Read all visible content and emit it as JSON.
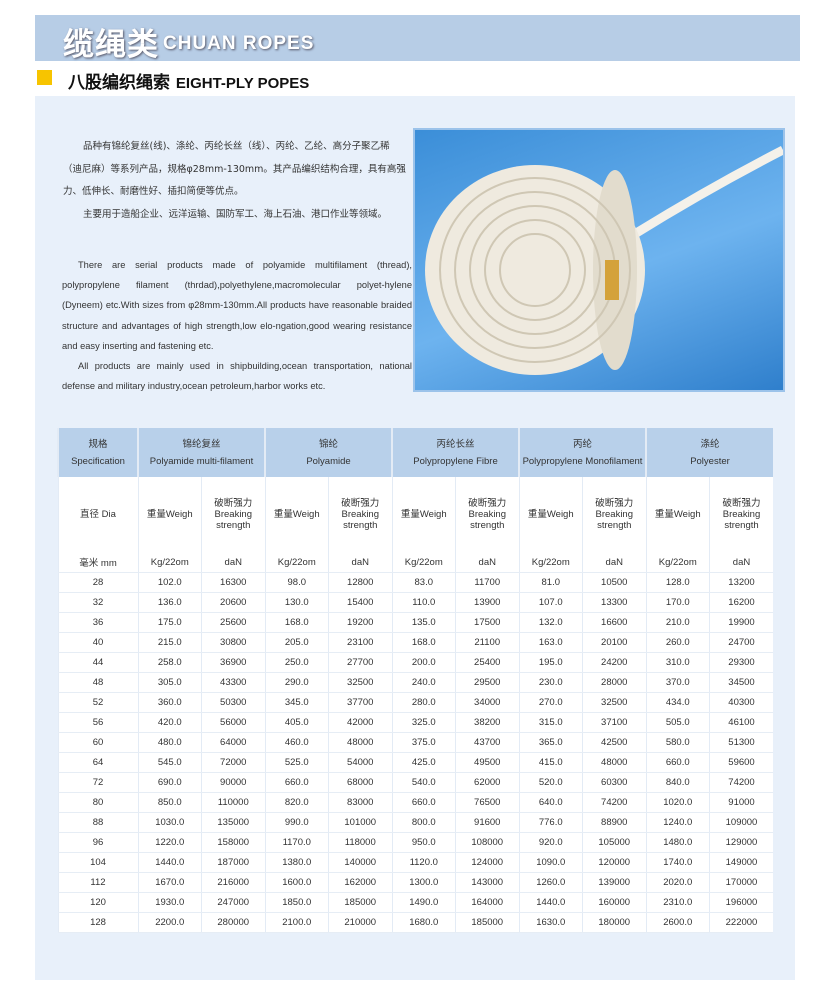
{
  "banner": {
    "title_cn": "缆绳类",
    "title_en": "CHUAN ROPES"
  },
  "section": {
    "title_cn": "八股编织绳索",
    "title_en": "EIGHT-PLY POPES",
    "marker_color": "#f7c400"
  },
  "description_cn": [
    "品种有锦纶复丝(线)、涤纶、丙纶长丝（线）、丙纶、乙纶、高分子聚乙稀（迪尼麻）等系列产品，规格φ28mm-130mm。其产品编织结构合理，具有高强力、低伸长、耐磨性好、插扣简便等优点。",
    "主要用于造船企业、远洋运输、国防军工、海上石油、港口作业等领域。"
  ],
  "description_en": [
    "There are serial products made of polyamide multifilament (thread), polypropylene filament (thrdad),polyethylene,macromolecular polyet-hylene (Dyneem) etc.With sizes from φ28mm-130mm.All products have reasonable braided structure and advantages of high strength,low elo-ngation,good wearing resistance and easy  inserting and fastening etc.",
    "All products are mainly used in shipbuilding,ocean transportation, national defense and military industry,ocean petroleum,harbor works etc."
  ],
  "photo": {
    "subject": "coil of white eight-ply braided rope"
  },
  "table": {
    "spec_header": {
      "cn": "规格",
      "en": "Specification"
    },
    "materials": [
      {
        "cn": "锦纶复丝",
        "en": "Polyamide multi-filament"
      },
      {
        "cn": "锦纶",
        "en": "Polyamide"
      },
      {
        "cn": "丙纶长丝",
        "en": "Polypropylene Fibre"
      },
      {
        "cn": "丙纶",
        "en": "Polypropylene Monofilament"
      },
      {
        "cn": "涤纶",
        "en": "Polyester"
      }
    ],
    "dia_label": "直径 Dia",
    "weight_label": "重量Weigh",
    "strength_label": {
      "cn": "破断强力",
      "en1": "Breaking",
      "en2": "strength"
    },
    "units": {
      "dia": "毫米 mm",
      "weight": "Kg/22om",
      "strength": "daN"
    },
    "rows": [
      [
        "28",
        "102.0",
        "16300",
        "98.0",
        "12800",
        "83.0",
        "11700",
        "81.0",
        "10500",
        "128.0",
        "13200"
      ],
      [
        "32",
        "136.0",
        "20600",
        "130.0",
        "15400",
        "110.0",
        "13900",
        "107.0",
        "13300",
        "170.0",
        "16200"
      ],
      [
        "36",
        "175.0",
        "25600",
        "168.0",
        "19200",
        "135.0",
        "17500",
        "132.0",
        "16600",
        "210.0",
        "19900"
      ],
      [
        "40",
        "215.0",
        "30800",
        "205.0",
        "23100",
        "168.0",
        "21100",
        "163.0",
        "20100",
        "260.0",
        "24700"
      ],
      [
        "44",
        "258.0",
        "36900",
        "250.0",
        "27700",
        "200.0",
        "25400",
        "195.0",
        "24200",
        "310.0",
        "29300"
      ],
      [
        "48",
        "305.0",
        "43300",
        "290.0",
        "32500",
        "240.0",
        "29500",
        "230.0",
        "28000",
        "370.0",
        "34500"
      ],
      [
        "52",
        "360.0",
        "50300",
        "345.0",
        "37700",
        "280.0",
        "34000",
        "270.0",
        "32500",
        "434.0",
        "40300"
      ],
      [
        "56",
        "420.0",
        "56000",
        "405.0",
        "42000",
        "325.0",
        "38200",
        "315.0",
        "37100",
        "505.0",
        "46100"
      ],
      [
        "60",
        "480.0",
        "64000",
        "460.0",
        "48000",
        "375.0",
        "43700",
        "365.0",
        "42500",
        "580.0",
        "51300"
      ],
      [
        "64",
        "545.0",
        "72000",
        "525.0",
        "54000",
        "425.0",
        "49500",
        "415.0",
        "48000",
        "660.0",
        "59600"
      ],
      [
        "72",
        "690.0",
        "90000",
        "660.0",
        "68000",
        "540.0",
        "62000",
        "520.0",
        "60300",
        "840.0",
        "74200"
      ],
      [
        "80",
        "850.0",
        "110000",
        "820.0",
        "83000",
        "660.0",
        "76500",
        "640.0",
        "74200",
        "1020.0",
        "91000"
      ],
      [
        "88",
        "1030.0",
        "135000",
        "990.0",
        "101000",
        "800.0",
        "91600",
        "776.0",
        "88900",
        "1240.0",
        "109000"
      ],
      [
        "96",
        "1220.0",
        "158000",
        "1170.0",
        "118000",
        "950.0",
        "108000",
        "920.0",
        "105000",
        "1480.0",
        "129000"
      ],
      [
        "104",
        "1440.0",
        "187000",
        "1380.0",
        "140000",
        "1120.0",
        "124000",
        "1090.0",
        "120000",
        "1740.0",
        "149000"
      ],
      [
        "112",
        "1670.0",
        "216000",
        "1600.0",
        "162000",
        "1300.0",
        "143000",
        "1260.0",
        "139000",
        "2020.0",
        "170000"
      ],
      [
        "120",
        "1930.0",
        "247000",
        "1850.0",
        "185000",
        "1490.0",
        "164000",
        "1440.0",
        "160000",
        "2310.0",
        "196000"
      ],
      [
        "128",
        "2200.0",
        "280000",
        "2100.0",
        "210000",
        "1680.0",
        "185000",
        "1630.0",
        "180000",
        "2600.0",
        "222000"
      ]
    ]
  }
}
